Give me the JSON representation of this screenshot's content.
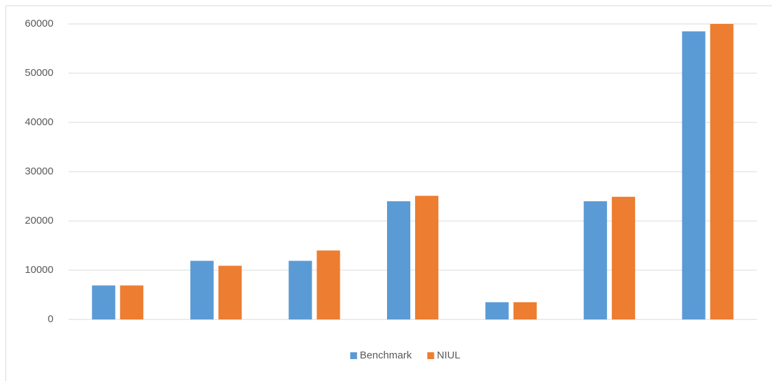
{
  "chart_data": {
    "type": "bar",
    "categories": [
      null,
      null,
      null,
      null,
      null,
      null,
      null
    ],
    "series": [
      {
        "name": "Benchmark",
        "color": "#5b9bd5",
        "values": [
          6900,
          11900,
          11900,
          24000,
          3500,
          24000,
          58500
        ]
      },
      {
        "name": "NIUL",
        "color": "#ed7d31",
        "values": [
          6900,
          10900,
          14000,
          25100,
          3500,
          24900,
          60000
        ]
      }
    ],
    "ylim": [
      0,
      60000
    ],
    "yticks": [
      0,
      10000,
      20000,
      30000,
      40000,
      50000,
      60000
    ],
    "grid": true,
    "legend": "bottom"
  }
}
